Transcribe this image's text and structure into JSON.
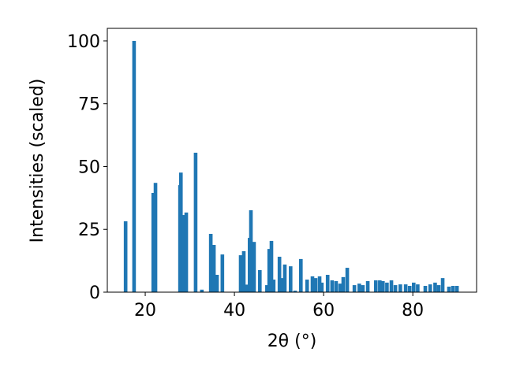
{
  "chart_data": {
    "type": "bar",
    "xlabel": "2θ (°)",
    "ylabel": "Intensities (scaled)",
    "x": [
      15.6,
      17.5,
      21.8,
      22.3,
      27.8,
      28.0,
      28.5,
      29.2,
      31.3,
      32.7,
      34.7,
      35.4,
      36.1,
      37.3,
      41.4,
      42.1,
      42.8,
      43.4,
      43.7,
      44.4,
      45.7,
      47.3,
      47.8,
      48.3,
      48.8,
      50.1,
      50.8,
      51.3,
      52.6,
      53.6,
      54.9,
      56.3,
      57.5,
      58.2,
      59.1,
      59.6,
      60.9,
      61.9,
      62.8,
      63.7,
      64.4,
      65.3,
      66.9,
      68.0,
      68.8,
      69.9,
      71.7,
      72.6,
      73.3,
      74.2,
      75.2,
      76.1,
      77.2,
      78.4,
      79.3,
      80.2,
      81.1,
      82.8,
      83.9,
      85.0,
      85.8,
      86.7,
      88.1,
      89.0,
      89.9
    ],
    "values": [
      28.2,
      100,
      39.5,
      43.5,
      42.6,
      47.6,
      30.7,
      31.7,
      55.5,
      1.0,
      23.2,
      18.8,
      6.9,
      15.0,
      14.7,
      16.3,
      3.0,
      21.6,
      32.6,
      20.0,
      8.8,
      2.8,
      17.2,
      20.4,
      5.0,
      14.1,
      5.6,
      11.0,
      10.3,
      0.6,
      13.2,
      5.0,
      6.3,
      5.6,
      6.3,
      3.8,
      6.9,
      4.7,
      4.4,
      3.4,
      6.0,
      9.7,
      2.8,
      3.4,
      2.8,
      4.4,
      4.7,
      4.7,
      4.4,
      3.8,
      4.7,
      2.8,
      3.1,
      3.1,
      2.5,
      3.8,
      3.1,
      2.5,
      3.1,
      3.8,
      2.8,
      5.6,
      2.2,
      2.5,
      2.5
    ],
    "color": "#1f77b4",
    "xlim": [
      11.5,
      94.3
    ],
    "xticks": [
      20,
      40,
      60,
      80
    ],
    "ylim": [
      0,
      105
    ],
    "yticks": [
      0,
      25,
      50,
      75,
      100
    ],
    "grid": false
  }
}
